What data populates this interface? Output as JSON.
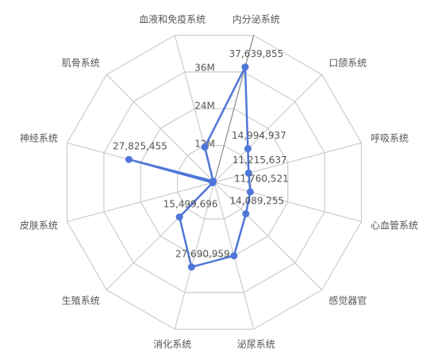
{
  "chart_data": {
    "type": "radar",
    "categories": [
      "内分泌系统",
      "口颌系统",
      "呼吸系统",
      "心血管系统",
      "感觉器官",
      "泌尿系统",
      "消化系统",
      "生殖系统",
      "皮肤系统",
      "神经系统",
      "肌骨系统",
      "血液和免疫系统"
    ],
    "series": [
      {
        "color": "#4f76d8",
        "values": [
          37639855,
          14994937,
          11215637,
          11760521,
          14089255,
          24000000,
          27690959,
          15499696,
          500000,
          27825455,
          500000,
          11500000
        ],
        "value_labels": [
          "37,639,855",
          "14,994,937",
          "11,215,637",
          "11,760,521",
          "14,089,255",
          null,
          "27,690,959",
          "15,499,696",
          null,
          "27,825,455",
          null,
          null
        ]
      }
    ],
    "ylim": [
      0,
      48000000
    ],
    "yticks": [
      {
        "value": 12000000,
        "label": "12M"
      },
      {
        "value": 24000000,
        "label": "24M"
      },
      {
        "value": 36000000,
        "label": "36M"
      }
    ],
    "grid": true
  }
}
